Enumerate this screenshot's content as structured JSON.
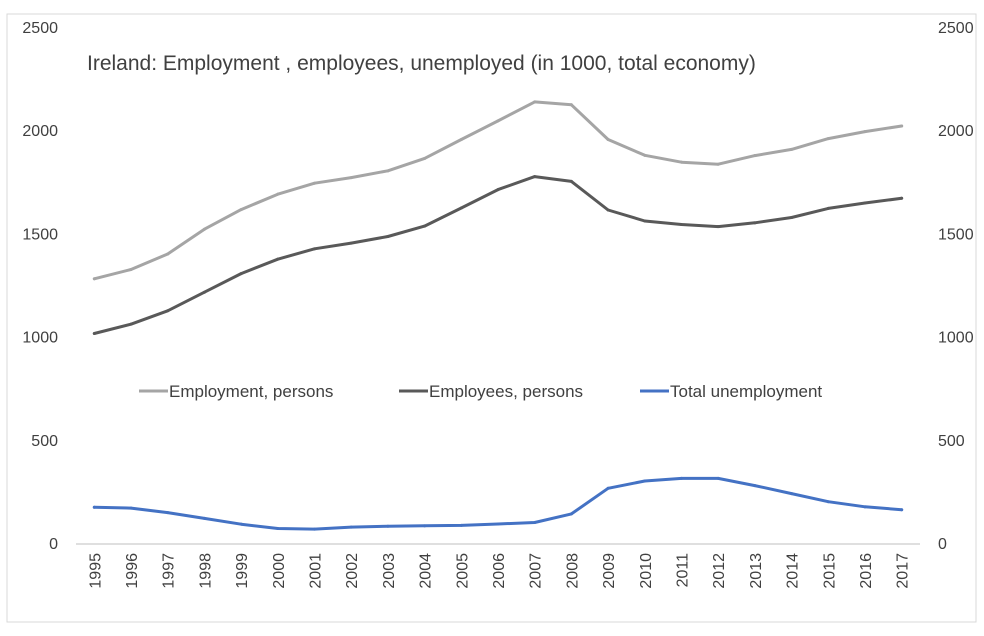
{
  "chart_data": {
    "type": "line",
    "title": "Ireland: Employment , employees, unemployed (in 1000, total economy)",
    "xlabel": "",
    "ylabel": "",
    "ylim": [
      0,
      2500
    ],
    "yticks": [
      0,
      500,
      1000,
      1500,
      2000,
      2500
    ],
    "secondary_yticks": [
      0,
      500,
      1000,
      1500,
      2000,
      2500
    ],
    "grid": false,
    "legend_position": "middle-center",
    "categories": [
      "1995",
      "1996",
      "1997",
      "1998",
      "1999",
      "2000",
      "2001",
      "2002",
      "2003",
      "2004",
      "2005",
      "2006",
      "2007",
      "2008",
      "2009",
      "2010",
      "2011",
      "2012",
      "2013",
      "2014",
      "2015",
      "2016",
      "2017"
    ],
    "series": [
      {
        "name": "Employment, persons",
        "color": "#a5a5a5",
        "values": [
          1285,
          1330,
          1405,
          1525,
          1620,
          1695,
          1748,
          1775,
          1808,
          1868,
          1960,
          2050,
          2142,
          2128,
          1960,
          1883,
          1850,
          1840,
          1882,
          1912,
          1964,
          1998,
          2025
        ]
      },
      {
        "name": "Employees, persons",
        "color": "#595959",
        "values": [
          1020,
          1065,
          1130,
          1220,
          1310,
          1380,
          1430,
          1458,
          1490,
          1540,
          1628,
          1717,
          1780,
          1757,
          1618,
          1565,
          1548,
          1538,
          1556,
          1582,
          1626,
          1652,
          1675
        ]
      },
      {
        "name": "Total unemployment",
        "color": "#4472c4",
        "values": [
          178,
          174,
          152,
          124,
          96,
          75,
          72,
          82,
          86,
          88,
          90,
          97,
          104,
          146,
          270,
          305,
          318,
          318,
          283,
          244,
          205,
          180,
          166
        ]
      }
    ]
  }
}
